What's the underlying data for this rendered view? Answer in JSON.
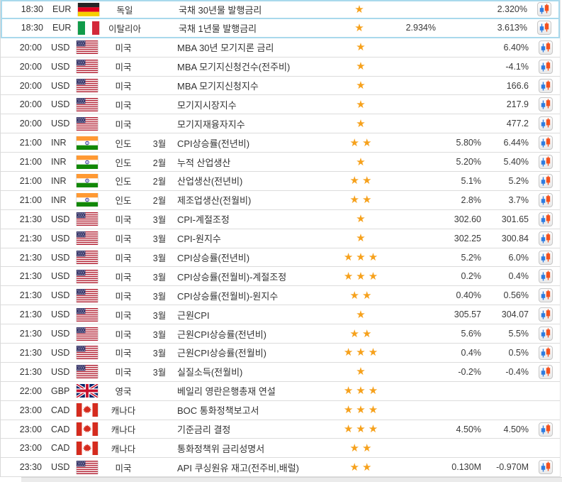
{
  "calendar": {
    "rows": [
      {
        "time": "18:30",
        "currency": "EUR",
        "flag": "de",
        "country": "독일",
        "month": "",
        "event": "국채 30년물 발행금리",
        "stars": 1,
        "actual": "",
        "forecast": "",
        "previous": "2.320%",
        "chart": true,
        "highlighted": true
      },
      {
        "time": "18:30",
        "currency": "EUR",
        "flag": "it",
        "country": "이탈리아",
        "month": "",
        "event": "국채 1년물 발행금리",
        "stars": 1,
        "actual": "2.934%",
        "forecast": "",
        "previous": "3.613%",
        "chart": true,
        "highlighted": true
      },
      {
        "time": "20:00",
        "currency": "USD",
        "flag": "us",
        "country": "미국",
        "month": "",
        "event": "MBA 30년 모기지론 금리",
        "stars": 1,
        "actual": "",
        "forecast": "",
        "previous": "6.40%",
        "chart": true,
        "highlighted": false
      },
      {
        "time": "20:00",
        "currency": "USD",
        "flag": "us",
        "country": "미국",
        "month": "",
        "event": "MBA 모기지신청건수(전주비)",
        "stars": 1,
        "actual": "",
        "forecast": "",
        "previous": "-4.1%",
        "chart": true,
        "highlighted": false
      },
      {
        "time": "20:00",
        "currency": "USD",
        "flag": "us",
        "country": "미국",
        "month": "",
        "event": "MBA 모기지신청지수",
        "stars": 1,
        "actual": "",
        "forecast": "",
        "previous": "166.6",
        "chart": true,
        "highlighted": false
      },
      {
        "time": "20:00",
        "currency": "USD",
        "flag": "us",
        "country": "미국",
        "month": "",
        "event": "모기지시장지수",
        "stars": 1,
        "actual": "",
        "forecast": "",
        "previous": "217.9",
        "chart": true,
        "highlighted": false
      },
      {
        "time": "20:00",
        "currency": "USD",
        "flag": "us",
        "country": "미국",
        "month": "",
        "event": "모기지재융자지수",
        "stars": 1,
        "actual": "",
        "forecast": "",
        "previous": "477.2",
        "chart": true,
        "highlighted": false
      },
      {
        "time": "21:00",
        "currency": "INR",
        "flag": "in",
        "country": "인도",
        "month": "3월",
        "event": "CPI상승률(전년비)",
        "stars": 2,
        "actual": "",
        "forecast": "5.80%",
        "previous": "6.44%",
        "chart": true,
        "highlighted": false
      },
      {
        "time": "21:00",
        "currency": "INR",
        "flag": "in",
        "country": "인도",
        "month": "2월",
        "event": "누적 산업생산",
        "stars": 1,
        "actual": "",
        "forecast": "5.20%",
        "previous": "5.40%",
        "chart": true,
        "highlighted": false
      },
      {
        "time": "21:00",
        "currency": "INR",
        "flag": "in",
        "country": "인도",
        "month": "2월",
        "event": "산업생산(전년비)",
        "stars": 2,
        "actual": "",
        "forecast": "5.1%",
        "previous": "5.2%",
        "chart": true,
        "highlighted": false
      },
      {
        "time": "21:00",
        "currency": "INR",
        "flag": "in",
        "country": "인도",
        "month": "2월",
        "event": "제조업생산(전월비)",
        "stars": 2,
        "actual": "",
        "forecast": "2.8%",
        "previous": "3.7%",
        "chart": true,
        "highlighted": false
      },
      {
        "time": "21:30",
        "currency": "USD",
        "flag": "us",
        "country": "미국",
        "month": "3월",
        "event": "CPI-계절조정",
        "stars": 1,
        "actual": "",
        "forecast": "302.60",
        "previous": "301.65",
        "chart": true,
        "highlighted": false
      },
      {
        "time": "21:30",
        "currency": "USD",
        "flag": "us",
        "country": "미국",
        "month": "3월",
        "event": "CPI-원지수",
        "stars": 1,
        "actual": "",
        "forecast": "302.25",
        "previous": "300.84",
        "chart": true,
        "highlighted": false
      },
      {
        "time": "21:30",
        "currency": "USD",
        "flag": "us",
        "country": "미국",
        "month": "3월",
        "event": "CPI상승률(전년비)",
        "stars": 3,
        "actual": "",
        "forecast": "5.2%",
        "previous": "6.0%",
        "chart": true,
        "highlighted": false
      },
      {
        "time": "21:30",
        "currency": "USD",
        "flag": "us",
        "country": "미국",
        "month": "3월",
        "event": "CPI상승률(전월비)-계절조정",
        "stars": 3,
        "actual": "",
        "forecast": "0.2%",
        "previous": "0.4%",
        "chart": true,
        "highlighted": false
      },
      {
        "time": "21:30",
        "currency": "USD",
        "flag": "us",
        "country": "미국",
        "month": "3월",
        "event": "CPI상승률(전월비)-원지수",
        "stars": 2,
        "actual": "",
        "forecast": "0.40%",
        "previous": "0.56%",
        "chart": true,
        "highlighted": false
      },
      {
        "time": "21:30",
        "currency": "USD",
        "flag": "us",
        "country": "미국",
        "month": "3월",
        "event": "근원CPI",
        "stars": 1,
        "actual": "",
        "forecast": "305.57",
        "previous": "304.07",
        "chart": true,
        "highlighted": false
      },
      {
        "time": "21:30",
        "currency": "USD",
        "flag": "us",
        "country": "미국",
        "month": "3월",
        "event": "근원CPI상승률(전년비)",
        "stars": 2,
        "actual": "",
        "forecast": "5.6%",
        "previous": "5.5%",
        "chart": true,
        "highlighted": false
      },
      {
        "time": "21:30",
        "currency": "USD",
        "flag": "us",
        "country": "미국",
        "month": "3월",
        "event": "근원CPI상승률(전월비)",
        "stars": 3,
        "actual": "",
        "forecast": "0.4%",
        "previous": "0.5%",
        "chart": true,
        "highlighted": false
      },
      {
        "time": "21:30",
        "currency": "USD",
        "flag": "us",
        "country": "미국",
        "month": "3월",
        "event": "실질소득(전월비)",
        "stars": 1,
        "actual": "",
        "forecast": "-0.2%",
        "previous": "-0.4%",
        "chart": true,
        "highlighted": false
      },
      {
        "time": "22:00",
        "currency": "GBP",
        "flag": "gb",
        "country": "영국",
        "month": "",
        "event": "베일리 영란은행총재 연설",
        "stars": 3,
        "actual": "",
        "forecast": "",
        "previous": "",
        "chart": false,
        "highlighted": false
      },
      {
        "time": "23:00",
        "currency": "CAD",
        "flag": "ca",
        "country": "캐나다",
        "month": "",
        "event": "BOC 통화정책보고서",
        "stars": 3,
        "actual": "",
        "forecast": "",
        "previous": "",
        "chart": false,
        "highlighted": false
      },
      {
        "time": "23:00",
        "currency": "CAD",
        "flag": "ca",
        "country": "캐나다",
        "month": "",
        "event": "기준금리 결정",
        "stars": 3,
        "actual": "",
        "forecast": "4.50%",
        "previous": "4.50%",
        "chart": true,
        "highlighted": false
      },
      {
        "time": "23:00",
        "currency": "CAD",
        "flag": "ca",
        "country": "캐나다",
        "month": "",
        "event": "통화정책위 금리성명서",
        "stars": 2,
        "actual": "",
        "forecast": "",
        "previous": "",
        "chart": false,
        "highlighted": false
      },
      {
        "time": "23:30",
        "currency": "USD",
        "flag": "us",
        "country": "미국",
        "month": "",
        "event": "API 쿠싱원유 재고(전주비,배럴)",
        "stars": 2,
        "actual": "",
        "forecast": "0.130M",
        "previous": "-0.970M",
        "chart": true,
        "highlighted": false
      }
    ],
    "icons": {
      "de": "germany-flag-icon",
      "it": "italy-flag-icon",
      "us": "usa-flag-icon",
      "in": "india-flag-icon",
      "gb": "uk-flag-icon",
      "ca": "canada-flag-icon",
      "chart": "candlestick-chart-icon",
      "star": "importance-star-icon"
    },
    "colors": {
      "star_orange": "#f6a11c",
      "highlight_border": "#a9d9ec",
      "row_separator": "#dcdcdc",
      "candle_blue": "#2d7ce1",
      "candle_red": "#f4511e",
      "text": "#333333"
    }
  }
}
